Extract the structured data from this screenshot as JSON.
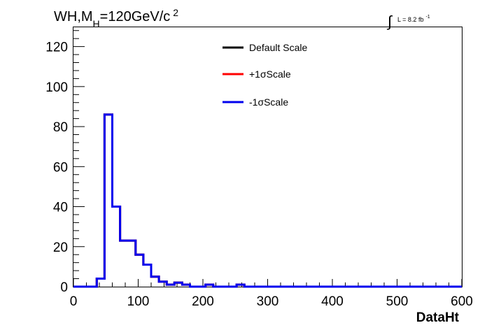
{
  "colors": {
    "default": "#000000",
    "plus": "#ff0000",
    "minus": "#0000ee",
    "frame": "#000000"
  },
  "chart_data": {
    "type": "line",
    "drawstyle": "step-histogram",
    "title": {
      "main": "WH,M",
      "subscript": "H",
      "value": "=120GeV/c",
      "superscript": "2"
    },
    "lumi_label": {
      "integral": "∫",
      "text": "L = 8.2 fb",
      "superscript": "-1"
    },
    "xlabel": "DataHt",
    "ylabel": "",
    "xlim": [
      0,
      600
    ],
    "ylim": [
      0,
      130
    ],
    "xticks": [
      0,
      100,
      200,
      300,
      400,
      500,
      600
    ],
    "yticks": [
      0,
      20,
      40,
      60,
      80,
      100,
      120
    ],
    "grid": false,
    "legend_position": "top-center",
    "bin_edges": [
      0,
      12,
      24,
      36,
      48,
      60,
      72,
      84,
      96,
      108,
      120,
      132,
      144,
      156,
      168,
      180,
      192,
      204,
      216,
      228,
      240,
      252,
      264,
      276,
      288,
      300,
      312,
      324,
      336,
      348,
      360,
      372,
      384,
      396,
      408,
      420,
      432,
      444,
      456,
      468,
      480,
      492,
      504,
      516,
      528,
      540,
      552,
      564,
      576,
      588,
      600
    ],
    "series": [
      {
        "name": "Default Scale",
        "color": "default",
        "values": [
          0,
          0,
          0,
          4,
          86,
          40,
          23,
          23,
          16,
          11,
          5,
          2.5,
          1,
          2,
          1,
          0,
          0,
          1,
          0,
          0,
          0,
          1,
          0,
          0,
          0,
          0,
          0,
          0,
          0,
          0,
          0,
          0,
          0,
          0,
          0,
          0,
          0,
          0,
          0,
          0,
          0,
          0,
          0,
          0,
          0,
          0,
          0,
          0,
          0,
          0
        ]
      },
      {
        "name": "+1σScale",
        "color": "plus",
        "values": [
          0,
          0,
          0,
          4,
          86,
          40,
          23,
          23,
          16,
          11,
          5,
          2.5,
          1,
          2,
          1,
          0,
          0,
          1,
          0,
          0,
          0,
          1,
          0,
          0,
          0,
          0,
          0,
          0,
          0,
          0,
          0,
          0,
          0,
          0,
          0,
          0,
          0,
          0,
          0,
          0,
          0,
          0,
          0,
          0,
          0,
          0,
          0,
          0,
          0,
          0
        ]
      },
      {
        "name": "-1σScale",
        "color": "minus",
        "values": [
          0,
          0,
          0,
          4,
          86,
          40,
          23,
          23,
          16,
          11,
          5,
          2.5,
          1,
          2,
          1,
          0,
          0,
          1,
          0,
          0,
          0,
          1,
          0,
          0,
          0,
          0,
          0,
          0,
          0,
          0,
          0,
          0,
          0,
          0,
          0,
          0,
          0,
          0,
          0,
          0,
          0,
          0,
          0,
          0,
          0,
          0,
          0,
          0,
          0,
          0
        ]
      }
    ]
  }
}
